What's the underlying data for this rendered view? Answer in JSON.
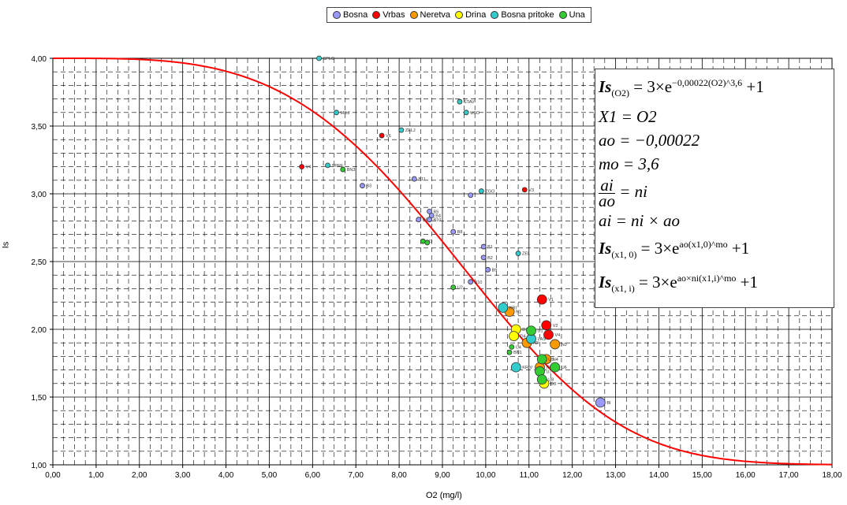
{
  "legend": [
    {
      "name": "Bosna",
      "color": "#9999ff"
    },
    {
      "name": "Vrbas",
      "color": "#ff0000"
    },
    {
      "name": "Neretva",
      "color": "#ff9900"
    },
    {
      "name": "Drina",
      "color": "#ffff00"
    },
    {
      "name": "Bosna pritoke",
      "color": "#33cccc"
    },
    {
      "name": "Una",
      "color": "#33cc33"
    }
  ],
  "formula": {
    "l1_lhs": "Is",
    "l1_sub": "(O2)",
    "l1_mid": " = 3×e",
    "l1_sup": "−0,00022(O2)^3,6",
    "l1_end": " +1",
    "l2": "X1 = O2",
    "l3": "ao = −0,00022",
    "l4": "mo = 3,6",
    "l5_num": "ai",
    "l5_den": "ao",
    "l5_rhs": " = ni",
    "l6": "ai = ni × ao",
    "l7_lhs": "Is",
    "l7_sub": "(x1, 0)",
    "l7_mid": " = 3×e",
    "l7_sup": "ao(x1,0)^mo",
    "l7_end": " +1",
    "l8_lhs": "Is",
    "l8_sub": "(x1, i)",
    "l8_mid": " = 3×e",
    "l8_sup": "ao×ni(x1,i)^mo",
    "l8_end": " +1"
  },
  "chart_data": {
    "type": "scatter",
    "xlabel": "O2 (mg/l)",
    "ylabel": "Is",
    "xlim": [
      0,
      18
    ],
    "ylim": [
      1,
      4
    ],
    "x_ticks": [
      "0,00",
      "1,00",
      "2,00",
      "3,00",
      "4,00",
      "5,00",
      "6,00",
      "7,00",
      "8,00",
      "9,00",
      "10,00",
      "11,00",
      "12,00",
      "13,00",
      "14,00",
      "15,00",
      "16,00",
      "17,00",
      "18,00"
    ],
    "y_ticks": [
      "1,00",
      "1,50",
      "2,00",
      "2,50",
      "3,00",
      "3,50",
      "4,00"
    ],
    "grid": true,
    "legend_position": "top",
    "curve": {
      "a": -0.00022,
      "m": 3.6,
      "color": "#ff0000"
    },
    "series": [
      {
        "name": "Bosna",
        "color": "#9999ff",
        "points": [
          {
            "x": 8.35,
            "y": 3.11,
            "label": "B11",
            "big": false
          },
          {
            "x": 7.15,
            "y": 3.06,
            "label": "B3",
            "big": false
          },
          {
            "x": 9.65,
            "y": 2.99,
            "label": "",
            "big": false
          },
          {
            "x": 8.7,
            "y": 2.87,
            "label": "B5",
            "big": false
          },
          {
            "x": 8.75,
            "y": 2.84,
            "label": "B4",
            "big": false
          },
          {
            "x": 8.45,
            "y": 2.81,
            "label": "B6",
            "big": false
          },
          {
            "x": 8.7,
            "y": 2.81,
            "label": "B10",
            "big": false
          },
          {
            "x": 9.25,
            "y": 2.72,
            "label": "B8",
            "big": false
          },
          {
            "x": 9.95,
            "y": 2.61,
            "label": "B1",
            "big": false
          },
          {
            "x": 9.95,
            "y": 2.53,
            "label": "B2",
            "big": false
          },
          {
            "x": 10.05,
            "y": 2.44,
            "label": "B9",
            "big": false
          },
          {
            "x": 9.65,
            "y": 2.35,
            "label": "B10",
            "big": false
          },
          {
            "x": 12.65,
            "y": 1.46,
            "label": "BI",
            "big": true
          }
        ]
      },
      {
        "name": "Vrbas",
        "color": "#ff0000",
        "points": [
          {
            "x": 5.75,
            "y": 3.2,
            "label": "V4",
            "big": false
          },
          {
            "x": 7.6,
            "y": 3.43,
            "label": "V6",
            "big": false
          },
          {
            "x": 10.9,
            "y": 3.03,
            "label": "V3",
            "big": false
          },
          {
            "x": 11.3,
            "y": 2.22,
            "label": "V1",
            "big": true
          },
          {
            "x": 11.4,
            "y": 2.03,
            "label": "V2",
            "big": true
          },
          {
            "x": 11.45,
            "y": 1.96,
            "label": "V4",
            "big": true
          }
        ]
      },
      {
        "name": "Neretva",
        "color": "#ff9900",
        "points": [
          {
            "x": 10.55,
            "y": 2.13,
            "label": "N1",
            "big": true
          },
          {
            "x": 10.95,
            "y": 1.9,
            "label": "N2",
            "big": true
          },
          {
            "x": 11.6,
            "y": 1.89,
            "label": "N3",
            "big": true
          },
          {
            "x": 11.4,
            "y": 1.78,
            "label": "N4",
            "big": true
          },
          {
            "x": 11.25,
            "y": 1.72,
            "label": "N5",
            "big": true
          }
        ]
      },
      {
        "name": "Drina",
        "color": "#ffff00",
        "points": [
          {
            "x": 10.7,
            "y": 2.0,
            "label": "D1",
            "big": true
          },
          {
            "x": 10.65,
            "y": 1.95,
            "label": "D4",
            "big": true
          },
          {
            "x": 11.35,
            "y": 1.6,
            "label": "D3",
            "big": true
          }
        ]
      },
      {
        "name": "Bosna pritoke",
        "color": "#33cccc",
        "points": [
          {
            "x": 6.15,
            "y": 4.0,
            "label": "SPLC",
            "big": false
          },
          {
            "x": 6.55,
            "y": 3.6,
            "label": "MILJ",
            "big": false
          },
          {
            "x": 6.35,
            "y": 3.21,
            "label": "SPRE",
            "big": false
          },
          {
            "x": 8.05,
            "y": 3.47,
            "label": "ZELJ",
            "big": false
          },
          {
            "x": 9.4,
            "y": 3.68,
            "label": "STAV",
            "big": false
          },
          {
            "x": 9.55,
            "y": 3.6,
            "label": "USO",
            "big": false
          },
          {
            "x": 9.9,
            "y": 3.02,
            "label": "ZGO",
            "big": false
          },
          {
            "x": 10.75,
            "y": 2.56,
            "label": "ZEL",
            "big": false
          },
          {
            "x": 10.4,
            "y": 2.16,
            "label": "KRI",
            "big": true
          },
          {
            "x": 10.7,
            "y": 1.72,
            "label": "KRIV",
            "big": true
          },
          {
            "x": 11.05,
            "y": 1.93,
            "label": "LAS",
            "big": true
          }
        ]
      },
      {
        "name": "Una",
        "color": "#33cc33",
        "points": [
          {
            "x": 6.7,
            "y": 3.18,
            "label": "BN3",
            "big": false
          },
          {
            "x": 8.55,
            "y": 2.65,
            "label": "U3",
            "big": false
          },
          {
            "x": 8.65,
            "y": 2.64,
            "label": "",
            "big": false
          },
          {
            "x": 9.25,
            "y": 2.31,
            "label": "U2",
            "big": false
          },
          {
            "x": 10.6,
            "y": 1.87,
            "label": "U4",
            "big": false
          },
          {
            "x": 10.55,
            "y": 1.83,
            "label": "BN1",
            "big": false
          },
          {
            "x": 11.05,
            "y": 1.99,
            "label": "U1",
            "big": true
          },
          {
            "x": 11.3,
            "y": 1.78,
            "label": "U5",
            "big": true
          },
          {
            "x": 11.6,
            "y": 1.72,
            "label": "U6",
            "big": true
          },
          {
            "x": 11.25,
            "y": 1.69,
            "label": "U7",
            "big": true
          },
          {
            "x": 11.3,
            "y": 1.63,
            "label": "U8",
            "big": true
          }
        ]
      }
    ]
  }
}
